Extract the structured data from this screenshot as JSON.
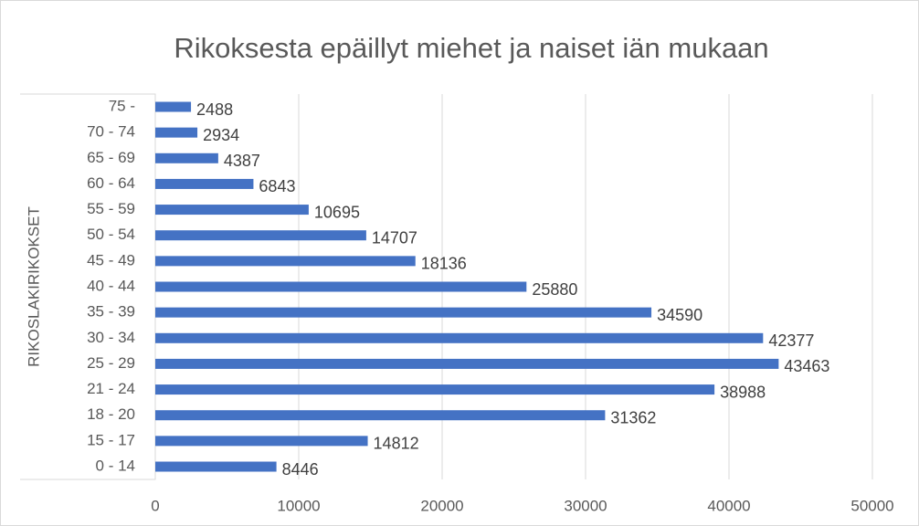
{
  "chart_data": {
    "type": "barh",
    "title": "Rikoksesta epäillyt miehet ja naiset iän mukaan",
    "y_label": "RIKOSLAKIRIKOKSET",
    "categories": [
      "75 -",
      "70 - 74",
      "65 - 69",
      "60 - 64",
      "55 - 59",
      "50 - 54",
      "45 - 49",
      "40 - 44",
      "35 - 39",
      "30 - 34",
      "25 - 29",
      "21 - 24",
      "18 - 20",
      "15 - 17",
      "0 - 14"
    ],
    "values": [
      2488,
      2934,
      4387,
      6843,
      10695,
      14707,
      18136,
      25880,
      34590,
      42377,
      43463,
      38988,
      31362,
      14812,
      8446
    ],
    "color": "#4472c4",
    "xlim": [
      0,
      50000
    ],
    "xticks": [
      0,
      10000,
      20000,
      30000,
      40000,
      50000
    ],
    "grid": true
  }
}
